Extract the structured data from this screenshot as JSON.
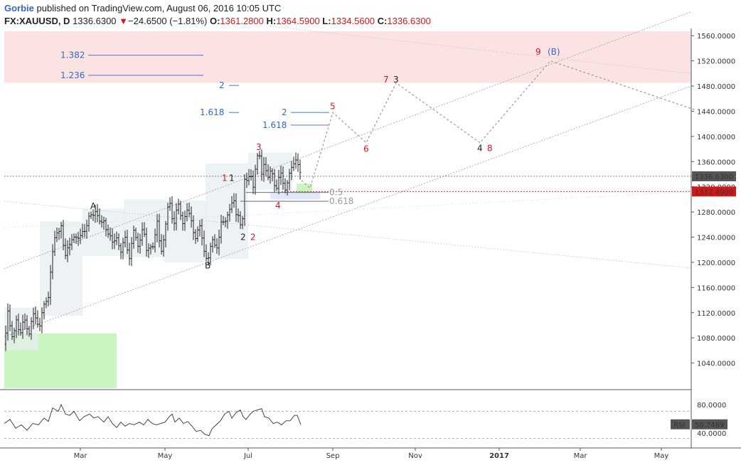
{
  "header": {
    "author": "Gorbie",
    "published": "published on TradingView.com, August 06, 2016 10:05 UTC",
    "symbol": "FX:XAUUSD, D",
    "last": "1336.6300",
    "change": "−24.6500 (−1.81%)",
    "o_label": "O:",
    "o": "1361.2800",
    "h_label": "H:",
    "h": "1364.5900",
    "l_label": "L:",
    "l": "1334.5600",
    "c_label": "C:",
    "c": "1336.6300"
  },
  "colors": {
    "up": "#222222",
    "down": "#d0181c",
    "fib": "#2f69c9",
    "red_zone": "#fbe3e3",
    "green_zone": "#c8f5c0",
    "box": "#e6eef0"
  },
  "chart_data": {
    "type": "candlestick",
    "symbol": "FX:XAUUSD",
    "y_axis": {
      "range": [
        1000,
        1567
      ],
      "ticks": [
        "1560.0000",
        "1520.0000",
        "1480.0000",
        "1440.0000",
        "1400.0000",
        "1360.0000",
        "1320.0000",
        "1280.0000",
        "1240.0000",
        "1200.0000",
        "1160.0000",
        "1120.0000",
        "1080.0000",
        "1040.0000"
      ]
    },
    "x_axis": {
      "ticks": [
        "Mar",
        "May",
        "Jul",
        "Sep",
        "Nov",
        "2017",
        "Mar",
        "May"
      ],
      "bold": "2017"
    },
    "last_price_label": "1336.6300",
    "red_line_label": "1312.4900",
    "ohlc_path": [
      [
        0,
        1070
      ],
      [
        5,
        1118
      ],
      [
        10,
        1078
      ],
      [
        17,
        1112
      ],
      [
        22,
        1075
      ],
      [
        28,
        1118
      ],
      [
        35,
        1085
      ],
      [
        42,
        1120
      ],
      [
        50,
        1100
      ],
      [
        55,
        1125
      ],
      [
        62,
        1150
      ],
      [
        66,
        1200
      ],
      [
        72,
        1240
      ],
      [
        80,
        1263
      ],
      [
        85,
        1200
      ],
      [
        90,
        1225
      ],
      [
        96,
        1245
      ],
      [
        103,
        1230
      ],
      [
        110,
        1255
      ],
      [
        115,
        1250
      ],
      [
        120,
        1272
      ],
      [
        128,
        1285
      ],
      [
        135,
        1255
      ],
      [
        140,
        1270
      ],
      [
        146,
        1245
      ],
      [
        152,
        1228
      ],
      [
        158,
        1245
      ],
      [
        164,
        1212
      ],
      [
        170,
        1240
      ],
      [
        176,
        1210
      ],
      [
        182,
        1245
      ],
      [
        188,
        1230
      ],
      [
        195,
        1255
      ],
      [
        200,
        1215
      ],
      [
        205,
        1232
      ],
      [
        210,
        1225
      ],
      [
        215,
        1260
      ],
      [
        220,
        1218
      ],
      [
        226,
        1250
      ],
      [
        232,
        1298
      ],
      [
        238,
        1262
      ],
      [
        244,
        1292
      ],
      [
        250,
        1260
      ],
      [
        256,
        1288
      ],
      [
        262,
        1265
      ],
      [
        268,
        1240
      ],
      [
        274,
        1262
      ],
      [
        280,
        1218
      ],
      [
        286,
        1208
      ],
      [
        292,
        1232
      ],
      [
        298,
        1220
      ],
      [
        305,
        1265
      ],
      [
        310,
        1255
      ],
      [
        316,
        1288
      ],
      [
        322,
        1302
      ],
      [
        326,
        1270
      ],
      [
        330,
        1275
      ],
      [
        334,
        1255
      ],
      [
        338,
        1330
      ],
      [
        342,
        1322
      ],
      [
        346,
        1345
      ],
      [
        350,
        1325
      ],
      [
        354,
        1356
      ],
      [
        358,
        1372
      ],
      [
        362,
        1342
      ],
      [
        366,
        1368
      ],
      [
        370,
        1328
      ],
      [
        376,
        1345
      ],
      [
        382,
        1318
      ],
      [
        388,
        1340
      ],
      [
        394,
        1315
      ],
      [
        400,
        1340
      ],
      [
        406,
        1348
      ],
      [
        410,
        1365
      ],
      [
        414,
        1360
      ],
      [
        417,
        1337
      ]
    ],
    "wave_labels": [
      {
        "text": "A",
        "price": 1289,
        "bar": 125,
        "color": "dark"
      },
      {
        "text": "B",
        "price": 1195,
        "bar": 286,
        "color": "dark"
      },
      {
        "text": "1",
        "price": 1334,
        "bar": 310,
        "color": "red"
      },
      {
        "text": "1",
        "price": 1334,
        "bar": 320,
        "color": "dark"
      },
      {
        "text": "2",
        "price": 1240,
        "bar": 336,
        "color": "dark"
      },
      {
        "text": "2",
        "price": 1240,
        "bar": 350,
        "color": "red"
      },
      {
        "text": "3",
        "price": 1383,
        "bar": 358,
        "color": "red"
      },
      {
        "text": "4",
        "price": 1290,
        "bar": 385,
        "color": "red"
      },
      {
        "text": "5",
        "price": 1448,
        "bar": 462,
        "color": "red"
      },
      {
        "text": "6",
        "price": 1380,
        "bar": 509,
        "color": "red"
      },
      {
        "text": "7",
        "price": 1490,
        "bar": 537,
        "color": "red"
      },
      {
        "text": "3",
        "price": 1490,
        "bar": 551,
        "color": "dark"
      },
      {
        "text": "4",
        "price": 1381,
        "bar": 669,
        "color": "dark"
      },
      {
        "text": "8",
        "price": 1381,
        "bar": 683,
        "color": "red"
      },
      {
        "text": "9",
        "price": 1534,
        "bar": 751,
        "color": "red"
      },
      {
        "text": "(B)",
        "price": 1534,
        "bar": 768,
        "color": "blue"
      }
    ],
    "fib_levels": [
      {
        "text": "1.382",
        "price": 1529
      },
      {
        "text": "1.236",
        "price": 1497
      },
      {
        "text": "2",
        "price": 1481
      },
      {
        "text": "1.618",
        "price": 1438
      },
      {
        "text": "2",
        "price": 1438
      },
      {
        "text": "1.618",
        "price": 1418
      },
      {
        "text": "0.5",
        "price": 1311
      },
      {
        "text": "0.618",
        "price": 1297
      }
    ],
    "projection": [
      [
        418,
        1330
      ],
      [
        430,
        1318
      ],
      [
        462,
        1438
      ],
      [
        509,
        1390
      ],
      [
        551,
        1485
      ],
      [
        669,
        1390
      ],
      [
        768,
        1520
      ],
      [
        972,
        1442
      ]
    ],
    "rsi": {
      "label": "RSI",
      "value": "50.7489",
      "ticks": [
        "80.0000",
        "40.0000"
      ],
      "range": [
        20,
        100
      ],
      "upper": 70,
      "lower": 30,
      "values": [
        [
          0,
          52
        ],
        [
          8,
          58
        ],
        [
          16,
          45
        ],
        [
          24,
          50
        ],
        [
          32,
          42
        ],
        [
          40,
          52
        ],
        [
          48,
          50
        ],
        [
          56,
          60
        ],
        [
          62,
          55
        ],
        [
          68,
          75
        ],
        [
          76,
          70
        ],
        [
          80,
          80
        ],
        [
          86,
          66
        ],
        [
          92,
          64
        ],
        [
          98,
          70
        ],
        [
          106,
          56
        ],
        [
          112,
          62
        ],
        [
          120,
          66
        ],
        [
          126,
          60
        ],
        [
          132,
          62
        ],
        [
          140,
          54
        ],
        [
          146,
          62
        ],
        [
          152,
          52
        ],
        [
          158,
          46
        ],
        [
          164,
          54
        ],
        [
          170,
          48
        ],
        [
          176,
          52
        ],
        [
          182,
          50
        ],
        [
          190,
          54
        ],
        [
          196,
          50
        ],
        [
          202,
          58
        ],
        [
          208,
          52
        ],
        [
          214,
          50
        ],
        [
          220,
          52
        ],
        [
          226,
          54
        ],
        [
          232,
          62
        ],
        [
          236,
          66
        ],
        [
          240,
          54
        ],
        [
          246,
          60
        ],
        [
          252,
          52
        ],
        [
          258,
          55
        ],
        [
          264,
          48
        ],
        [
          270,
          40
        ],
        [
          276,
          42
        ],
        [
          282,
          36
        ],
        [
          288,
          34
        ],
        [
          292,
          44
        ],
        [
          298,
          50
        ],
        [
          304,
          56
        ],
        [
          310,
          66
        ],
        [
          316,
          70
        ],
        [
          320,
          60
        ],
        [
          326,
          68
        ],
        [
          332,
          72
        ],
        [
          336,
          62
        ],
        [
          340,
          58
        ],
        [
          346,
          66
        ],
        [
          350,
          70
        ],
        [
          356,
          72
        ],
        [
          362,
          74
        ],
        [
          366,
          62
        ],
        [
          372,
          60
        ],
        [
          378,
          52
        ],
        [
          384,
          54
        ],
        [
          390,
          50
        ],
        [
          396,
          56
        ],
        [
          402,
          56
        ],
        [
          408,
          64
        ],
        [
          412,
          64
        ],
        [
          417,
          50
        ]
      ]
    }
  }
}
